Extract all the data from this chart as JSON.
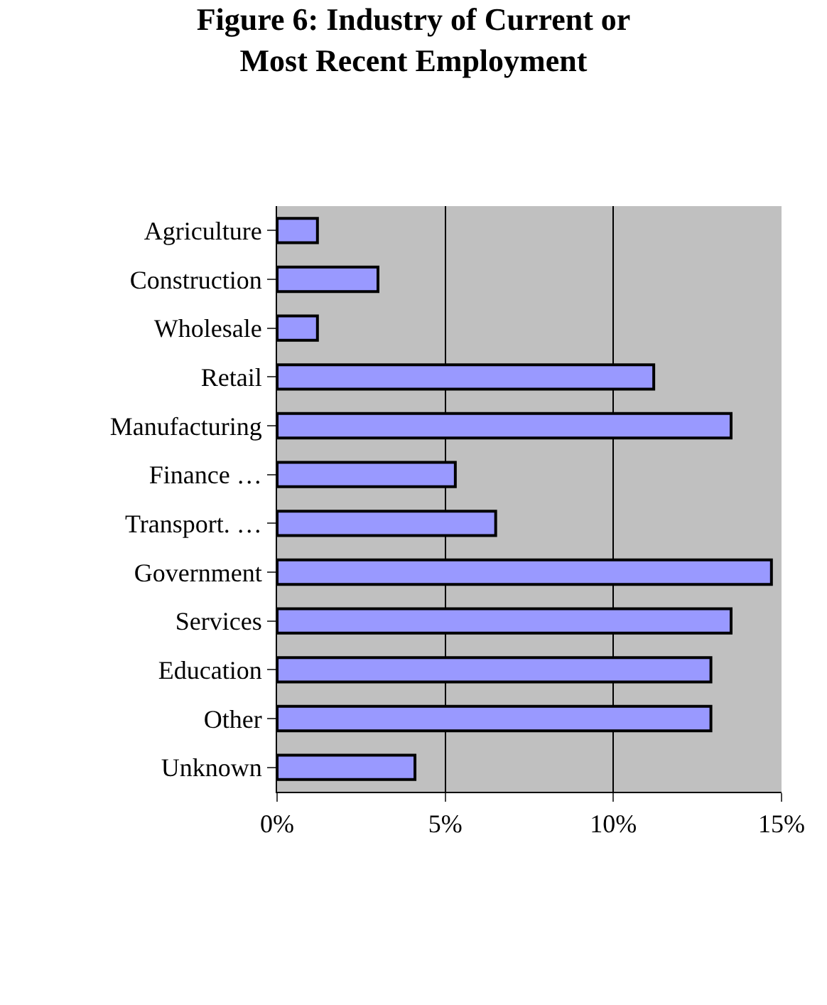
{
  "chart_data": {
    "type": "bar",
    "orientation": "horizontal",
    "title": "Figure 6: Industry of Current or\nMost Recent Employment",
    "categories": [
      "Agriculture",
      "Construction",
      "Wholesale",
      "Retail",
      "Manufacturing",
      "Finance …",
      "Transport. …",
      "Government",
      "Services",
      "Education",
      "Other",
      "Unknown"
    ],
    "values": [
      1.2,
      3.0,
      1.2,
      11.2,
      13.5,
      5.3,
      6.5,
      14.7,
      13.5,
      12.9,
      12.9,
      4.1
    ],
    "color": "#9999ff",
    "xlim": [
      0,
      15
    ],
    "xticks": [
      {
        "value": 0,
        "label": "0%"
      },
      {
        "value": 5,
        "label": "5%"
      },
      {
        "value": 10,
        "label": "10%"
      },
      {
        "value": 15,
        "label": "15%"
      }
    ],
    "grid": "x"
  }
}
